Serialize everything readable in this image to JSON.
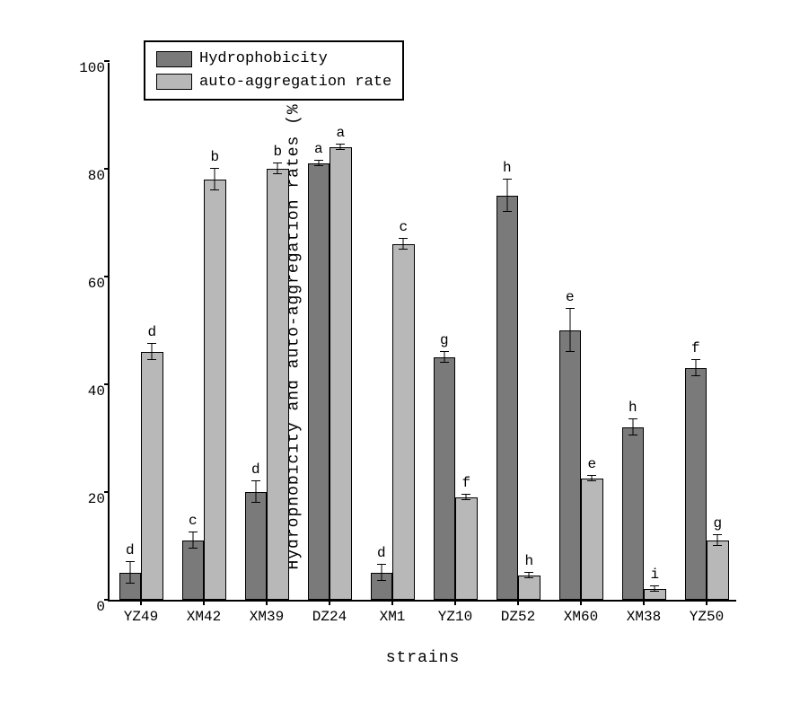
{
  "chart": {
    "type": "bar",
    "ylabel": "Hydrophobicity and auto-aggregation rates (%)",
    "xlabel": "strains",
    "ylim": [
      0,
      100
    ],
    "ytick_step": 20,
    "yticks": [
      0,
      20,
      40,
      60,
      80,
      100
    ],
    "categories": [
      "YZ49",
      "XM42",
      "XM39",
      "DZ24",
      "XM1",
      "YZ10",
      "DZ52",
      "XM60",
      "XM38",
      "YZ50"
    ],
    "series": [
      {
        "name": "Hydrophobicity",
        "color": "#7a7a7a",
        "values": [
          5,
          11,
          20,
          81,
          5,
          45,
          75,
          50,
          32,
          43
        ],
        "errors": [
          2,
          1.5,
          2,
          0.5,
          1.5,
          1,
          3,
          4,
          1.5,
          1.5
        ],
        "letters": [
          "d",
          "c",
          "d",
          "a",
          "d",
          "g",
          "h",
          "e",
          "h",
          "f"
        ]
      },
      {
        "name": "auto-aggregation rate",
        "color": "#b8b8b8",
        "values": [
          46,
          78,
          80,
          84,
          66,
          19,
          4.5,
          22.5,
          2,
          11
        ],
        "errors": [
          1.5,
          2,
          1,
          0.5,
          1,
          0.5,
          0.5,
          0.5,
          0.5,
          1
        ],
        "letters": [
          "d",
          "b",
          "b",
          "a",
          "c",
          "f",
          "h",
          "e",
          "i",
          "g"
        ]
      }
    ],
    "bar_width": 0.35,
    "label_fontsize": 18,
    "tick_fontsize": 16,
    "letter_fontsize": 16,
    "background_color": "#ffffff",
    "axis_color": "#000000",
    "font_family": "Courier New"
  },
  "legend": {
    "items": [
      {
        "label": "Hydrophobicity",
        "color": "#7a7a7a"
      },
      {
        "label": "auto-aggregation rate",
        "color": "#b8b8b8"
      }
    ]
  }
}
